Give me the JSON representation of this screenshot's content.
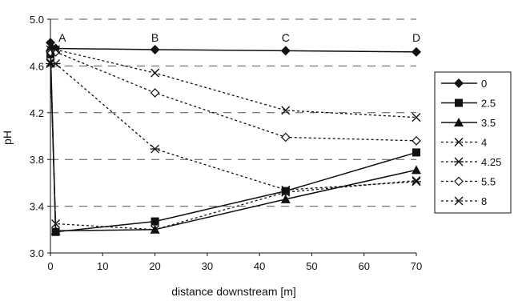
{
  "chart_data": {
    "type": "line",
    "xlabel": "distance downstream [m]",
    "ylabel": "pH",
    "xlim": [
      0,
      70
    ],
    "ylim": [
      3.0,
      5.0
    ],
    "xticks": [
      "0",
      "10",
      "20",
      "30",
      "40",
      "50",
      "60",
      "70"
    ],
    "yticks": [
      "3.0",
      "3.4",
      "3.8",
      "4.2",
      "4.6",
      "5.0"
    ],
    "grid": "horizontal dashed",
    "legend_position": "right",
    "annotations": [
      {
        "text": "A",
        "x": 1.5
      },
      {
        "text": "B",
        "x": 20
      },
      {
        "text": "C",
        "x": 45
      },
      {
        "text": "D",
        "x": 70
      }
    ],
    "series": [
      {
        "name": "0",
        "marker": "diamond-filled",
        "line": "solid",
        "points": [
          [
            0,
            4.8
          ],
          [
            1,
            4.75
          ],
          [
            20,
            4.74
          ],
          [
            45,
            4.73
          ],
          [
            70,
            4.72
          ]
        ]
      },
      {
        "name": "2.5",
        "marker": "square-filled",
        "line": "solid",
        "points": [
          [
            0,
            4.7
          ],
          [
            1,
            3.18
          ],
          [
            20,
            3.27
          ],
          [
            45,
            3.53
          ],
          [
            70,
            3.86
          ]
        ]
      },
      {
        "name": "3.5",
        "marker": "triangle-filled",
        "line": "solid",
        "points": [
          [
            0,
            4.76
          ],
          [
            1,
            3.19
          ],
          [
            20,
            3.2
          ],
          [
            45,
            3.46
          ],
          [
            70,
            3.71
          ]
        ]
      },
      {
        "name": "4",
        "marker": "x",
        "line": "dotted",
        "points": [
          [
            0,
            4.63
          ],
          [
            1,
            3.25
          ],
          [
            20,
            3.2
          ],
          [
            45,
            3.52
          ],
          [
            70,
            3.62
          ]
        ]
      },
      {
        "name": "4.25",
        "marker": "asterisk",
        "line": "dotted",
        "points": [
          [
            0,
            4.62
          ],
          [
            1,
            4.62
          ],
          [
            20,
            3.89
          ],
          [
            45,
            3.54
          ],
          [
            70,
            3.61
          ]
        ]
      },
      {
        "name": "5.5",
        "marker": "diamond-open",
        "line": "dotted",
        "points": [
          [
            0,
            4.72
          ],
          [
            1,
            4.72
          ],
          [
            20,
            4.37
          ],
          [
            45,
            3.99
          ],
          [
            70,
            3.96
          ]
        ]
      },
      {
        "name": "8",
        "marker": "x",
        "line": "dotted",
        "points": [
          [
            0,
            4.74
          ],
          [
            1,
            4.74
          ],
          [
            20,
            4.54
          ],
          [
            45,
            4.22
          ],
          [
            70,
            4.16
          ]
        ]
      }
    ]
  }
}
